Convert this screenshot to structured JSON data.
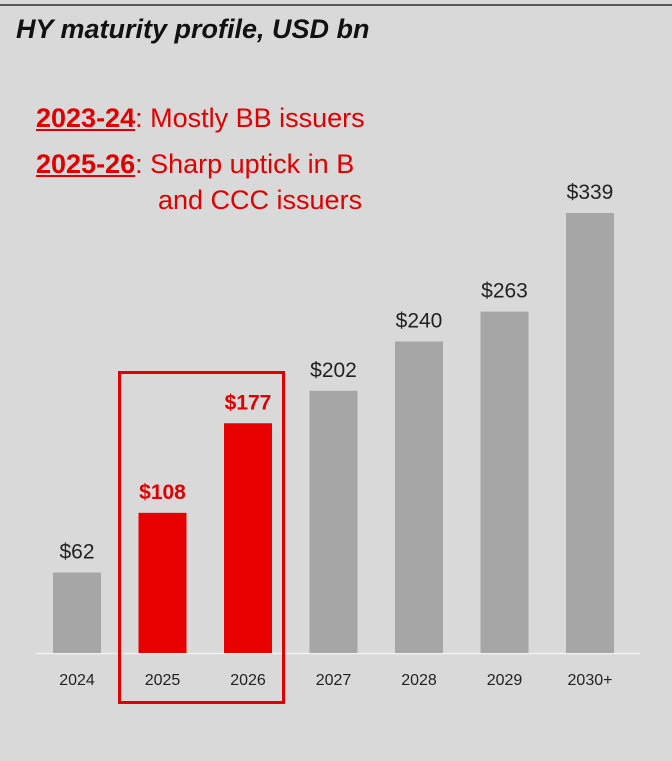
{
  "title": "HY maturity profile, USD bn",
  "annotations": [
    {
      "years": "2023-24",
      "text": ": Mostly BB issuers"
    },
    {
      "years": "2025-26",
      "text": ": Sharp uptick in B",
      "text2": "and CCC issuers"
    }
  ],
  "colors": {
    "background": "#d9d9d9",
    "bar_default": "#a6a6a6",
    "bar_highlight": "#e60000",
    "label_default": "#222222",
    "label_highlight": "#e00000"
  },
  "chart_data": {
    "type": "bar",
    "title": "HY maturity profile, USD bn",
    "categories": [
      "2024",
      "2025",
      "2026",
      "2027",
      "2028",
      "2029",
      "2030+"
    ],
    "values": [
      62,
      108,
      177,
      202,
      240,
      263,
      339
    ],
    "data_labels": [
      "$62",
      "$108",
      "$177",
      "$202",
      "$240",
      "$263",
      "$339"
    ],
    "highlighted": [
      "2025",
      "2026"
    ],
    "xlabel": "",
    "ylabel": "",
    "ylim": [
      0,
      339
    ],
    "grid": false,
    "legend": "none"
  }
}
